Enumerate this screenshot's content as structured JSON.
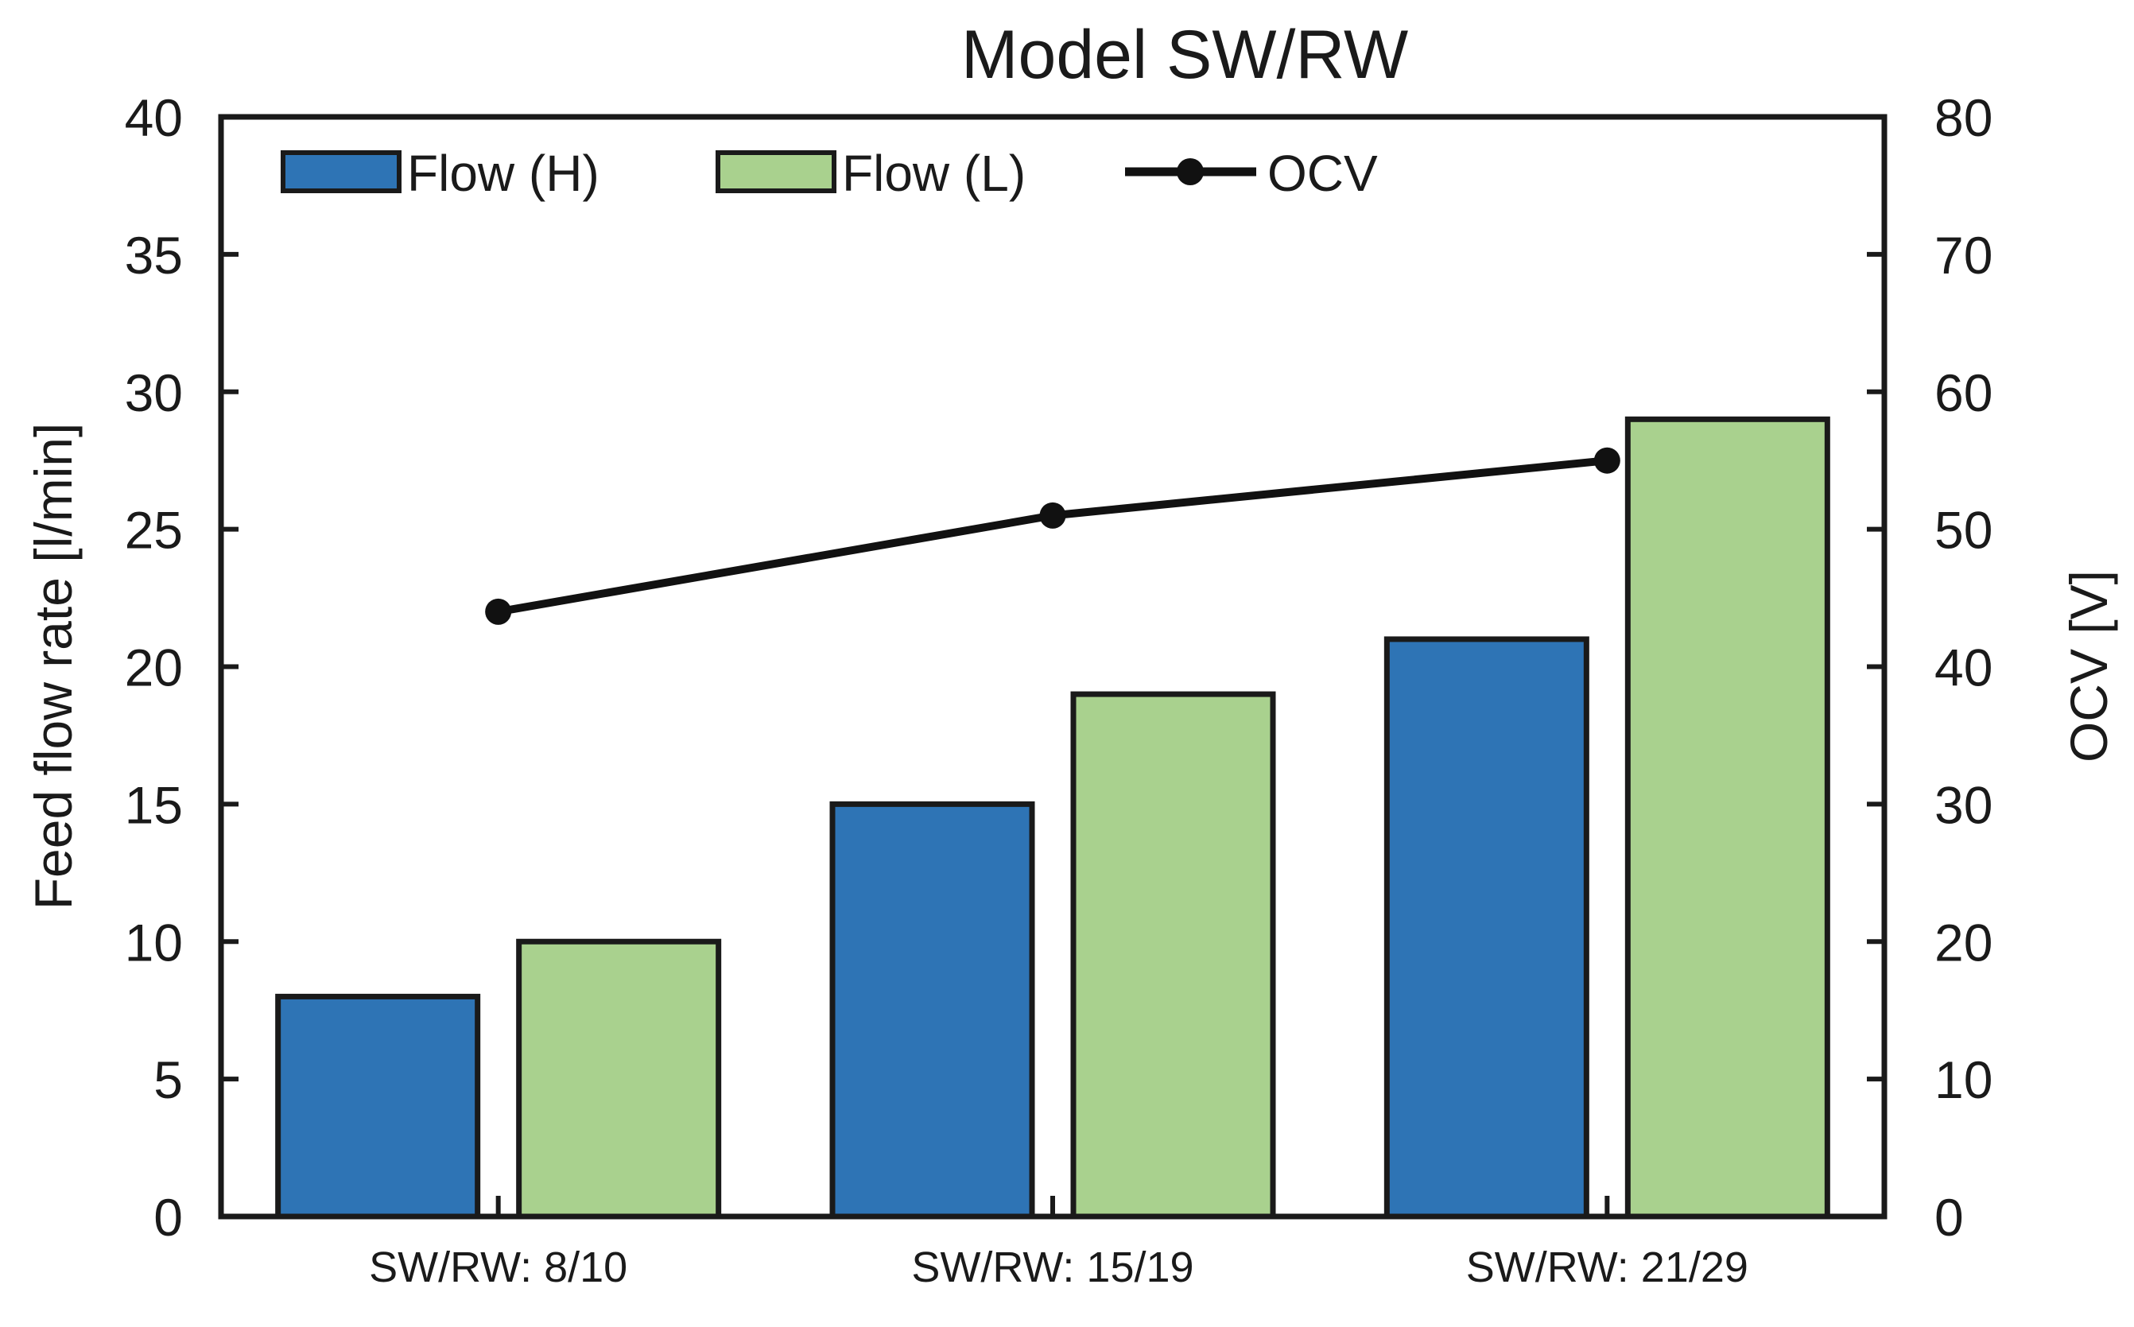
{
  "chart_data": {
    "type": "bar+line",
    "title": "Model SW/RW",
    "categories": [
      "SW/RW: 8/10",
      "SW/RW: 15/19",
      "SW/RW: 21/29"
    ],
    "series": [
      {
        "name": "Flow (H)",
        "type": "bar",
        "axis": "left",
        "color": "#2e74b5",
        "values": [
          8,
          15,
          21
        ]
      },
      {
        "name": "Flow (L)",
        "type": "bar",
        "axis": "left",
        "color": "#a9d18e",
        "values": [
          10,
          19,
          29
        ]
      },
      {
        "name": "OCV",
        "type": "line",
        "axis": "right",
        "color": "#111111",
        "values": [
          44,
          51,
          55
        ]
      }
    ],
    "left_axis": {
      "label": "Feed flow rate [l/min]",
      "min": 0,
      "max": 40,
      "step": 5,
      "ticks": [
        "0",
        "5",
        "10",
        "15",
        "20",
        "25",
        "30",
        "35",
        "40"
      ]
    },
    "right_axis": {
      "label": "OCV [V]",
      "min": 0,
      "max": 80,
      "step": 10,
      "ticks": [
        "0",
        "10",
        "20",
        "30",
        "40",
        "50",
        "60",
        "70",
        "80"
      ]
    },
    "legend_position": "top-inside",
    "grid": false,
    "frame_color": "#1a1a1a"
  }
}
